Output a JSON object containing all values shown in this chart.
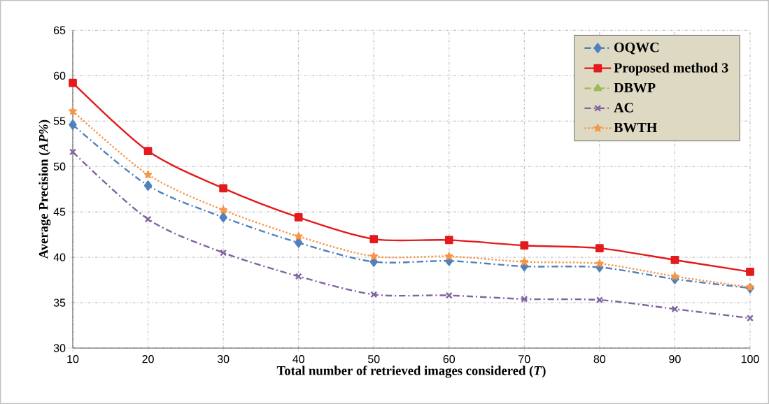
{
  "chart_data": {
    "type": "line",
    "xlabel": "Total number of retrieved images considered (*T*)",
    "ylabel": "Average  Precision (*AP%*)",
    "x": [
      10,
      20,
      30,
      40,
      50,
      60,
      70,
      80,
      90,
      100
    ],
    "xlim": [
      10,
      100
    ],
    "xticks": [
      10,
      20,
      30,
      40,
      50,
      60,
      70,
      80,
      90,
      100
    ],
    "ylim": [
      30,
      65
    ],
    "yticks": [
      30,
      35,
      40,
      45,
      50,
      55,
      60,
      65
    ],
    "grid": true,
    "legend": "top right",
    "series": [
      {
        "name": "OQWC",
        "color": "#4f81bd",
        "marker": "diamond",
        "line_style": "dashed",
        "values": [
          54.6,
          47.9,
          44.4,
          41.6,
          39.5,
          39.6,
          39.0,
          38.9,
          37.6,
          36.6
        ]
      },
      {
        "name": "Proposed method 3",
        "color": "#e41a1c",
        "marker": "square",
        "line_style": "solid",
        "values": [
          59.2,
          51.7,
          47.6,
          44.4,
          42.0,
          41.9,
          41.3,
          41.0,
          39.7,
          38.4
        ]
      },
      {
        "name": "DBWP",
        "color": "#9bbb59",
        "marker": "triangle",
        "line_style": "dashed",
        "values": [
          null,
          null,
          null,
          null,
          null,
          null,
          null,
          null,
          null,
          null
        ]
      },
      {
        "name": "AC",
        "color": "#8064a2",
        "marker": "cross",
        "line_style": "dashed",
        "values": [
          51.6,
          44.2,
          40.5,
          37.9,
          35.9,
          35.8,
          35.4,
          35.3,
          34.3,
          33.3
        ]
      },
      {
        "name": "BWTH",
        "color": "#f79646",
        "marker": "star",
        "line_style": "dotted",
        "values": [
          56.1,
          49.1,
          45.2,
          42.3,
          40.1,
          40.1,
          39.5,
          39.3,
          37.9,
          36.7
        ]
      }
    ]
  }
}
